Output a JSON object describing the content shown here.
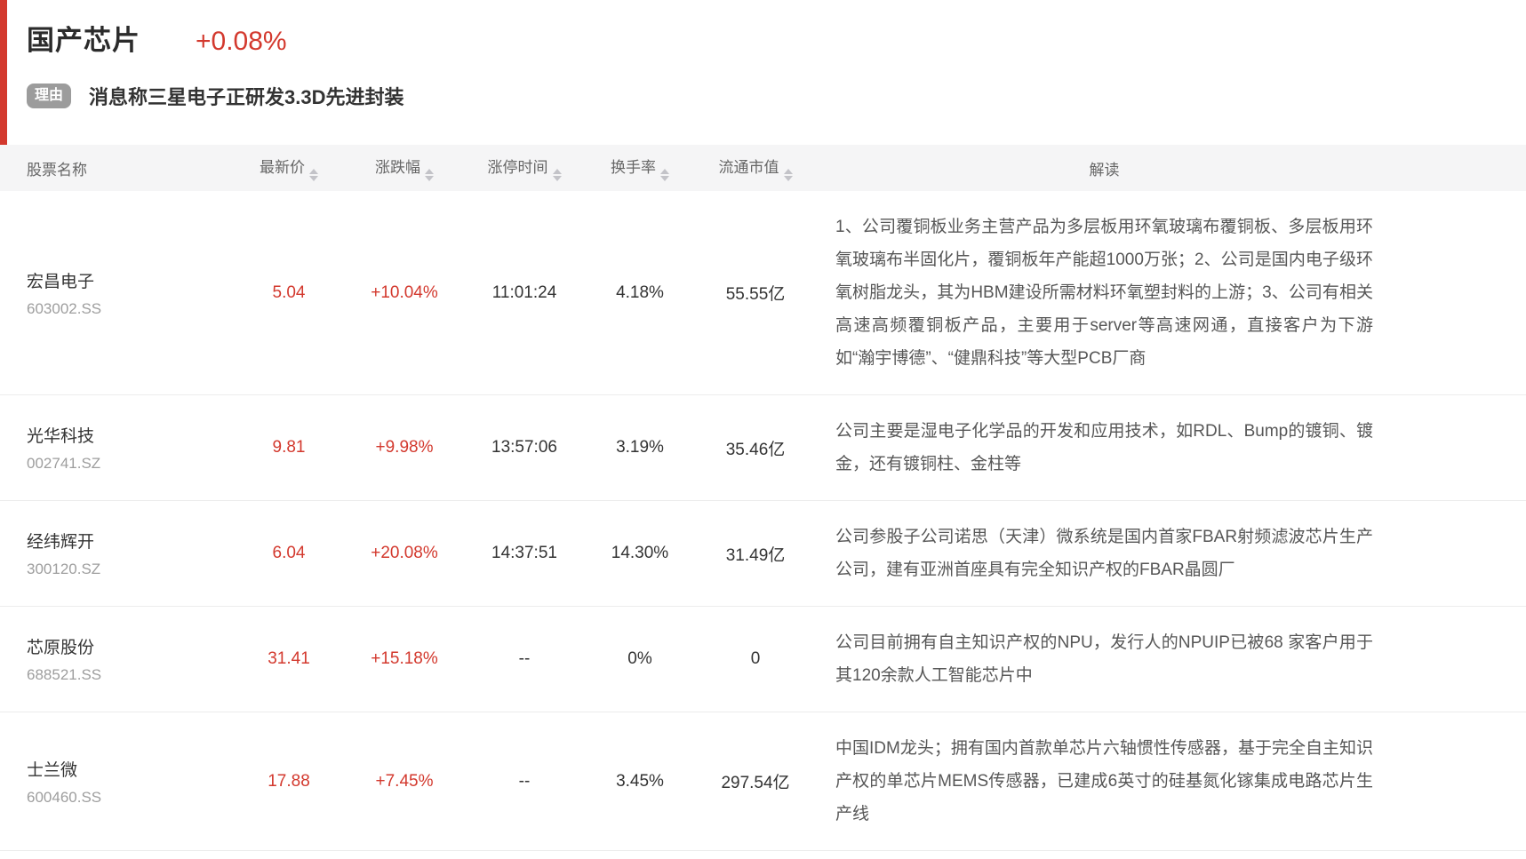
{
  "header": {
    "sector_name": "国产芯片",
    "sector_change": "+0.08%",
    "reason_tag": "理由",
    "reason_text": "消息称三星电子正研发3.3D先进封装"
  },
  "colors": {
    "accent_red": "#d3392e",
    "tag_gray": "#9c9c9c",
    "table_header_bg": "#f5f5f6"
  },
  "table": {
    "columns": {
      "name": "股票名称",
      "price": "最新价",
      "change": "涨跌幅",
      "limit_time": "涨停时间",
      "turnover": "换手率",
      "market_cap": "流通市值",
      "analysis": "解读"
    },
    "rows": [
      {
        "name": "宏昌电子",
        "code": "603002.SS",
        "price": "5.04",
        "change": "+10.04%",
        "limit_time": "11:01:24",
        "turnover": "4.18%",
        "market_cap": "55.55亿",
        "analysis": "1、公司覆铜板业务主营产品为多层板用环氧玻璃布覆铜板、多层板用环氧玻璃布半固化片，覆铜板年产能超1000万张；2、公司是国内电子级环氧树脂龙头，其为HBM建设所需材料环氧塑封料的上游；3、公司有相关高速高频覆铜板产品，主要用于server等高速网通，直接客户为下游如“瀚宇博德”、“健鼎科技”等大型PCB厂商"
      },
      {
        "name": "光华科技",
        "code": "002741.SZ",
        "price": "9.81",
        "change": "+9.98%",
        "limit_time": "13:57:06",
        "turnover": "3.19%",
        "market_cap": "35.46亿",
        "analysis": "公司主要是湿电子化学品的开发和应用技术，如RDL、Bump的镀铜、镀金，还有镀铜柱、金柱等"
      },
      {
        "name": "经纬辉开",
        "code": "300120.SZ",
        "price": "6.04",
        "change": "+20.08%",
        "limit_time": "14:37:51",
        "turnover": "14.30%",
        "market_cap": "31.49亿",
        "analysis": "公司参股子公司诺思（天津）微系统是国内首家FBAR射频滤波芯片生产公司，建有亚洲首座具有完全知识产权的FBAR晶圆厂"
      },
      {
        "name": "芯原股份",
        "code": "688521.SS",
        "price": "31.41",
        "change": "+15.18%",
        "limit_time": "--",
        "turnover": "0%",
        "market_cap": "0",
        "analysis": "公司目前拥有自主知识产权的NPU，发行人的NPUIP已被68 家客户用于其120余款人工智能芯片中"
      },
      {
        "name": "士兰微",
        "code": "600460.SS",
        "price": "17.88",
        "change": "+7.45%",
        "limit_time": "--",
        "turnover": "3.45%",
        "market_cap": "297.54亿",
        "analysis": "中国IDM龙头；拥有国内首款单芯片六轴惯性传感器，基于完全自主知识产权的单芯片MEMS传感器，已建成6英寸的硅基氮化镓集成电路芯片生产线"
      }
    ]
  }
}
